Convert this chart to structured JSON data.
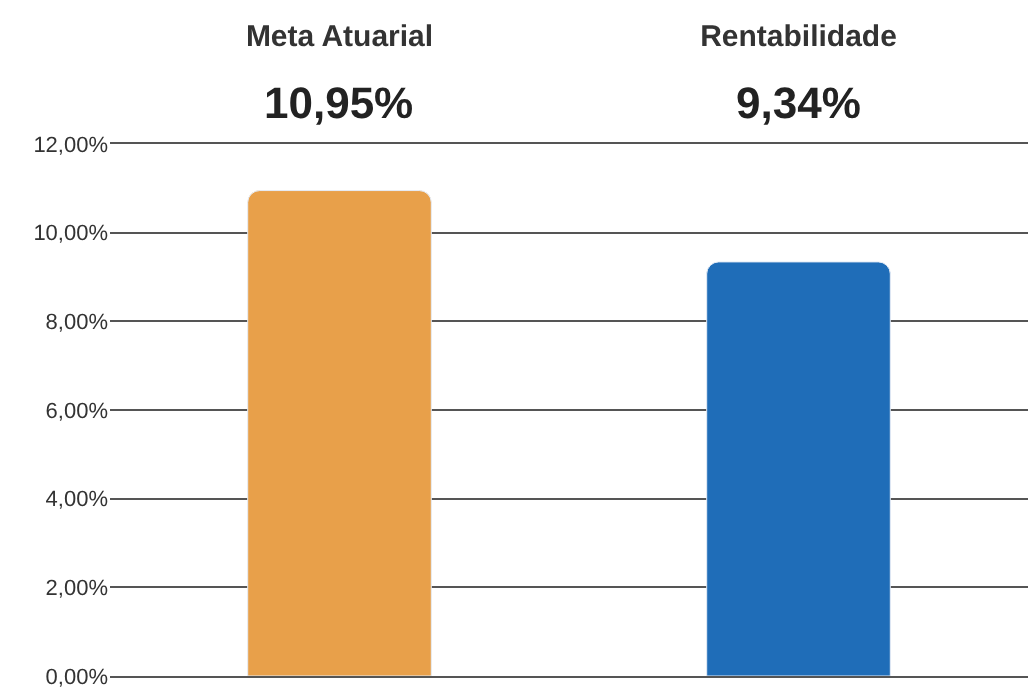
{
  "chart_data": {
    "type": "bar",
    "categories": [
      "Meta Atuarial",
      "Rentabilidade"
    ],
    "values": [
      10.95,
      9.34
    ],
    "colors": [
      "#e8a04a",
      "#1f6db8"
    ],
    "value_labels": [
      "10,95%",
      "9,34%"
    ],
    "ylim": [
      0,
      12
    ],
    "yticks": [
      {
        "value": 0,
        "label": "0,00%"
      },
      {
        "value": 2,
        "label": "2,00%"
      },
      {
        "value": 4,
        "label": "4,00%"
      },
      {
        "value": 6,
        "label": "6,00%"
      },
      {
        "value": 8,
        "label": "8,00%"
      },
      {
        "value": 10,
        "label": "10,00%"
      },
      {
        "value": 12,
        "label": "12,00%"
      }
    ],
    "grid": "y"
  }
}
